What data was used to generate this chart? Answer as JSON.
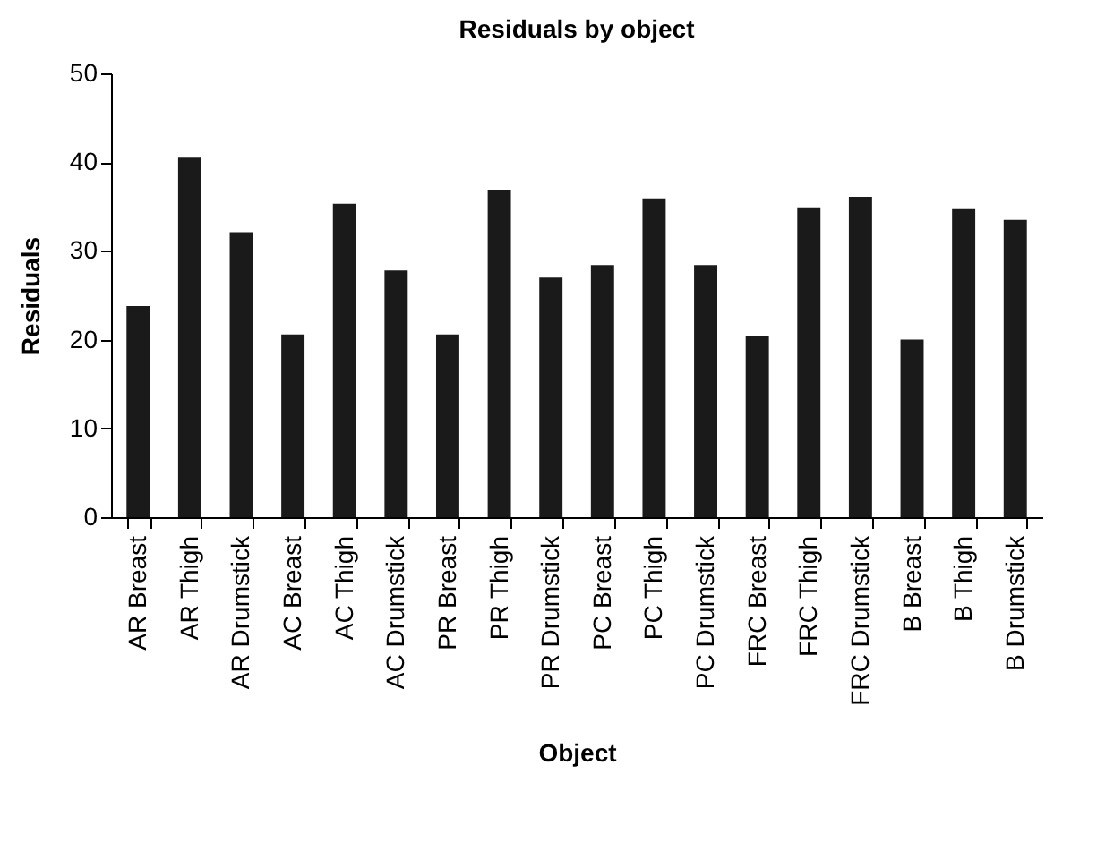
{
  "chart_data": {
    "type": "bar",
    "title": "Residuals by object",
    "xlabel": "Object",
    "ylabel": "Residuals",
    "categories": [
      "AR Breast",
      "AR Thigh",
      "AR Drumstick",
      "AC Breast",
      "AC Thigh",
      "AC Drumstick",
      "PR Breast",
      "PR Thigh",
      "PR Drumstick",
      "PC Breast",
      "PC Thigh",
      "PC Drumstick",
      "FRC Breast",
      "FRC Thigh",
      "FRC Drumstick",
      "B Breast",
      "B Thigh",
      "B Drumstick"
    ],
    "values": [
      23.8,
      40.5,
      32.1,
      20.6,
      35.3,
      27.8,
      20.6,
      36.9,
      27.0,
      28.4,
      35.9,
      28.4,
      20.4,
      34.9,
      36.1,
      20.0,
      34.7,
      33.5
    ],
    "color": "#1a1a1a",
    "ylim": [
      0,
      50
    ],
    "yticks": [
      0,
      10,
      20,
      30,
      40,
      50
    ],
    "grid": false
  }
}
